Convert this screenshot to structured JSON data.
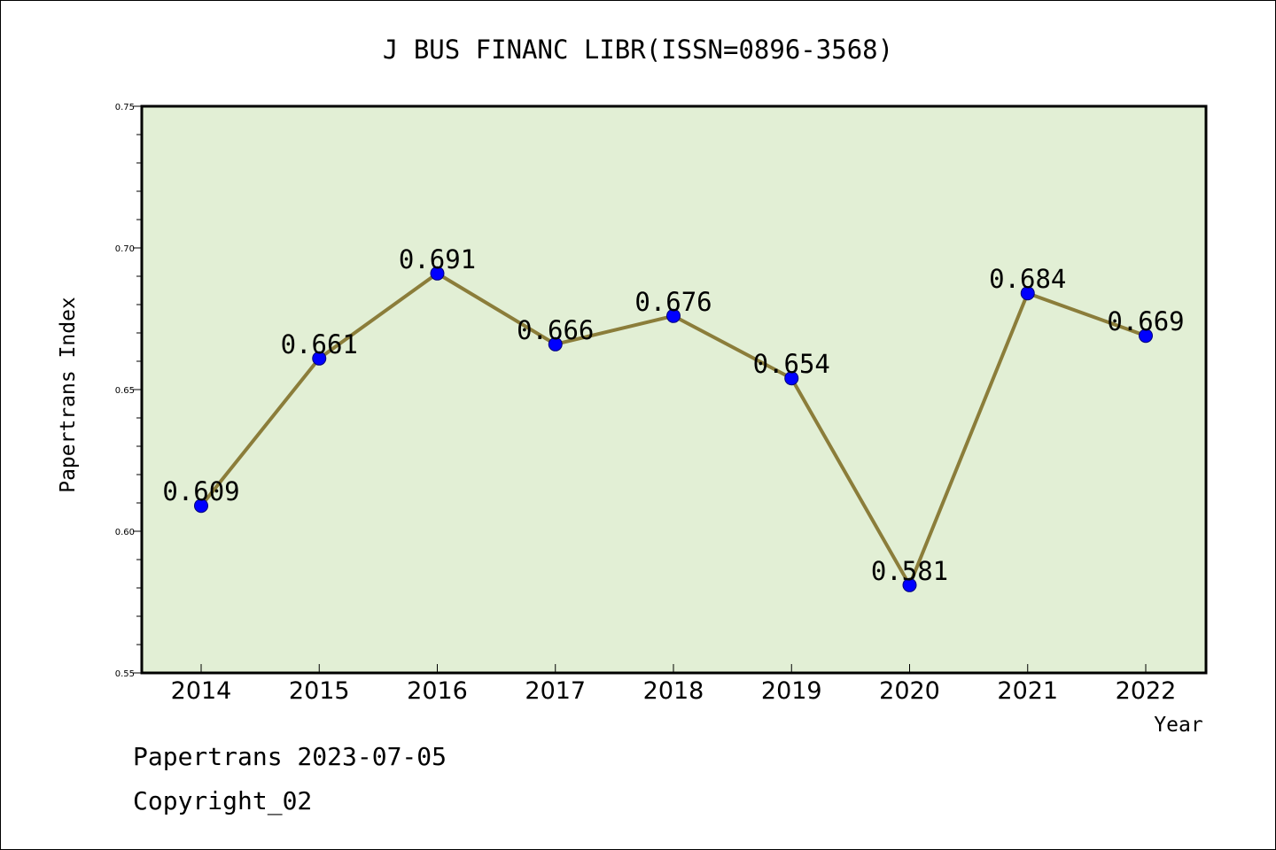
{
  "chart_data": {
    "type": "line",
    "title": "J BUS FINANC LIBR(ISSN=0896-3568)",
    "xlabel": "Year",
    "ylabel": "Papertrans Index",
    "categories": [
      "2014",
      "2015",
      "2016",
      "2017",
      "2018",
      "2019",
      "2020",
      "2021",
      "2022"
    ],
    "series": [
      {
        "values": [
          0.609,
          0.661,
          0.691,
          0.666,
          0.676,
          0.654,
          0.581,
          0.684,
          0.669
        ]
      }
    ],
    "data_labels": [
      "0.609",
      "0.661",
      "0.691",
      "0.666",
      "0.676",
      "0.654",
      "0.581",
      "0.684",
      "0.669"
    ],
    "ylim": [
      0.55,
      0.75
    ],
    "yticks": [
      "0.55",
      "0.60",
      "0.65",
      "0.70",
      "0.75"
    ],
    "grid": false,
    "colors": {
      "plot_background": "#e2efd5",
      "line": "#8b7d3a",
      "marker": "#0000ff"
    }
  },
  "footer": {
    "line1": "Papertrans 2023-07-05",
    "line2": "Copyright_02"
  }
}
